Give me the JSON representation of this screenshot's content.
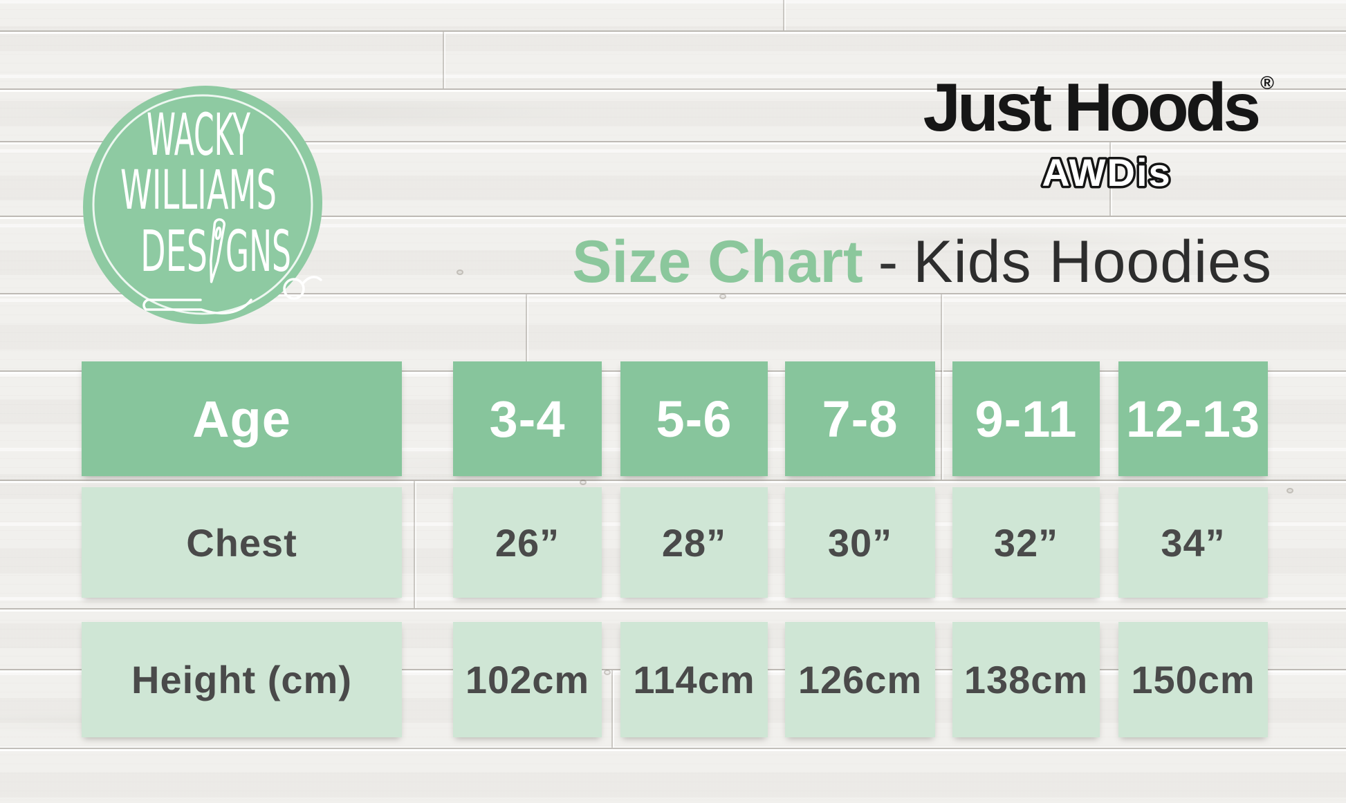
{
  "logo": {
    "line1": "WACKY",
    "line2": "WILLIAMS",
    "line3_left": "DES",
    "line3_right": "GNS"
  },
  "brand": {
    "wordmark": "Just Hoods",
    "registered_mark": "®",
    "maker": "AWDis"
  },
  "title": {
    "highlight": "Size Chart",
    "separator": "-",
    "rest": "Kids Hoodies"
  },
  "table": {
    "corner_header": "Age",
    "row_labels": [
      "Chest",
      "Height (cm)"
    ],
    "columns": [
      {
        "age": "3-4",
        "chest": "26”",
        "height": "102cm"
      },
      {
        "age": "5-6",
        "chest": "28”",
        "height": "114cm"
      },
      {
        "age": "7-8",
        "chest": "30”",
        "height": "126cm"
      },
      {
        "age": "9-11",
        "chest": "32”",
        "height": "138cm"
      },
      {
        "age": "12-13",
        "chest": "34”",
        "height": "150cm"
      }
    ]
  },
  "chart_data": {
    "type": "table",
    "title": "Size Chart - Kids Hoodies",
    "columns": [
      "Age",
      "3-4",
      "5-6",
      "7-8",
      "9-11",
      "12-13"
    ],
    "rows": [
      {
        "label": "Chest",
        "values": [
          "26\"",
          "28\"",
          "30\"",
          "32\"",
          "34\""
        ]
      },
      {
        "label": "Height (cm)",
        "values": [
          "102cm",
          "114cm",
          "126cm",
          "138cm",
          "150cm"
        ]
      }
    ],
    "legend_position": "none",
    "grid": false
  },
  "colors": {
    "header_green": "#87c59c",
    "cell_green": "#cfe6d5",
    "logo_green": "#8ecaa2",
    "title_green": "#8bc79c",
    "text_dark": "#4a4a4a",
    "brand_black": "#161616",
    "wood_base": "#f1f0ed"
  }
}
